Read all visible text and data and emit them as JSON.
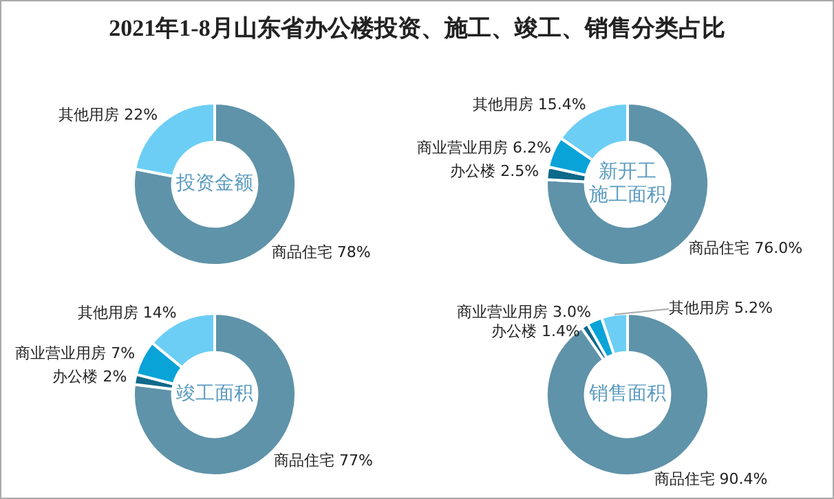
{
  "chart_data": [
    {
      "type": "donut",
      "title": "2021年1-8月山东省办公楼投资、施工、竣工、销售分类占比",
      "subtitle": "投资金额",
      "categories": [
        "商品住宅",
        "其他用房"
      ],
      "values": [
        78,
        22
      ],
      "value_labels": [
        "78%",
        "22%"
      ],
      "colors": [
        "#5f93a9",
        "#6ccef5"
      ],
      "legend": false
    },
    {
      "type": "donut",
      "subtitle": "新开工施工面积",
      "categories": [
        "商品住宅",
        "办公楼",
        "商业营业用房",
        "其他用房"
      ],
      "values": [
        76.0,
        2.5,
        6.2,
        15.4
      ],
      "value_labels": [
        "76.0%",
        "2.5%",
        "6.2%",
        "15.4%"
      ],
      "colors": [
        "#5f93a9",
        "#0e6a8a",
        "#0aa3d8",
        "#6ccef5"
      ],
      "legend": false
    },
    {
      "type": "donut",
      "subtitle": "竣工面积",
      "categories": [
        "商品住宅",
        "办公楼",
        "商业营业用房",
        "其他用房"
      ],
      "values": [
        77,
        2,
        7,
        14
      ],
      "value_labels": [
        "77%",
        "2%",
        "7%",
        "14%"
      ],
      "colors": [
        "#5f93a9",
        "#0e6a8a",
        "#0aa3d8",
        "#6ccef5"
      ],
      "legend": false
    },
    {
      "type": "donut",
      "subtitle": "销售面积",
      "categories": [
        "商品住宅",
        "办公楼",
        "商业营业用房",
        "其他用房"
      ],
      "values": [
        90.4,
        1.4,
        3.0,
        5.2
      ],
      "value_labels": [
        "90.4%",
        "1.4%",
        "3.0%",
        "5.2%"
      ],
      "colors": [
        "#5f93a9",
        "#0e6a8a",
        "#0aa3d8",
        "#6ccef5"
      ],
      "legend": false
    }
  ]
}
